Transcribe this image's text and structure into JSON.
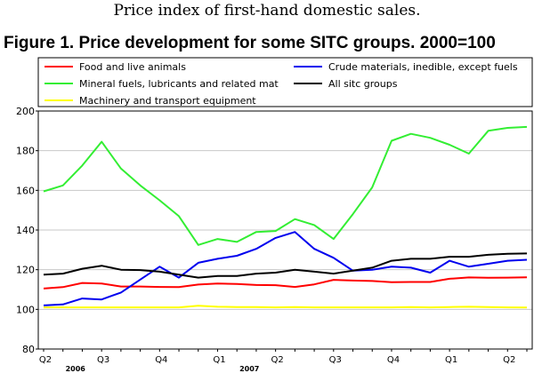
{
  "header": {
    "title": "Price index of first-hand domestic sales."
  },
  "figure": {
    "title": "Figure 1. Price development for some SITC groups. 2000=100"
  },
  "chart_data": {
    "type": "line",
    "title": "Figure 1. Price development for some SITC groups. 2000=100",
    "ylim": [
      80,
      200
    ],
    "yticks": [
      80,
      100,
      120,
      140,
      160,
      180,
      200
    ],
    "grid": "horizontal",
    "legend_position": "top",
    "quarter_labels": [
      "Q2",
      "Q3",
      "Q4",
      "Q1",
      "Q2",
      "Q3",
      "Q4",
      "Q1",
      "Q2"
    ],
    "year_labels": [
      "2006",
      "2007"
    ],
    "x": [
      "2006M04",
      "2006M05",
      "2006M06",
      "2006M07",
      "2006M08",
      "2006M09",
      "2006M10",
      "2006M11",
      "2006M12",
      "2007M01",
      "2007M02",
      "2007M03",
      "2007M04",
      "2007M05",
      "2007M06",
      "2007M07",
      "2007M08",
      "2007M09",
      "2007M10",
      "2007M11",
      "2007M12",
      "2008M01",
      "2008M02",
      "2008M03",
      "2008M04",
      "2008M05"
    ],
    "series": [
      {
        "name": "Food and live animals",
        "color": "#ff0000",
        "values": [
          110.5,
          111.2,
          113.3,
          113.0,
          111.5,
          111.5,
          111.3,
          111.2,
          112.5,
          113.0,
          112.8,
          112.3,
          112.2,
          111.3,
          112.6,
          114.9,
          114.5,
          114.3,
          113.7,
          113.8,
          113.8,
          115.4,
          116.1,
          115.9,
          116.0,
          116.2
        ]
      },
      {
        "name": "Mineral fuels, lubricants and related mat",
        "color": "#33ee33",
        "values": [
          159.5,
          162.5,
          172.5,
          184.5,
          171.0,
          162.5,
          155.0,
          147.0,
          132.5,
          135.5,
          134.0,
          139.0,
          139.5,
          145.5,
          142.5,
          135.5,
          148.0,
          161.5,
          185.0,
          188.5,
          186.5,
          183.0,
          178.5,
          190.0,
          191.5,
          192.0
        ]
      },
      {
        "name": "Machinery and transport equipment",
        "color": "#ffff00",
        "values": [
          101.0,
          101.0,
          101.0,
          101.0,
          101.0,
          101.0,
          101.0,
          101.0,
          101.8,
          101.3,
          101.2,
          101.2,
          101.0,
          101.2,
          101.0,
          101.0,
          101.0,
          101.0,
          101.0,
          101.2,
          101.0,
          101.2,
          101.3,
          101.2,
          101.0,
          100.9
        ]
      },
      {
        "name": "Crude materials, inedible, except fuels",
        "color": "#0000ee",
        "values": [
          102.0,
          102.5,
          105.5,
          105.0,
          108.5,
          115.0,
          121.5,
          116.0,
          123.5,
          125.5,
          127.0,
          130.5,
          136.0,
          139.0,
          130.5,
          126.0,
          119.5,
          120.0,
          121.5,
          121.0,
          118.5,
          124.5,
          121.5,
          123.0,
          124.5,
          125.0
        ]
      },
      {
        "name": "All sitc groups",
        "color": "#000000",
        "values": [
          117.5,
          118.0,
          120.5,
          122.0,
          120.0,
          119.8,
          119.0,
          117.5,
          116.0,
          116.8,
          116.8,
          118.0,
          118.5,
          120.0,
          119.0,
          118.0,
          119.5,
          121.0,
          124.5,
          125.5,
          125.5,
          126.5,
          126.5,
          127.5,
          128.0,
          128.2
        ]
      }
    ]
  }
}
